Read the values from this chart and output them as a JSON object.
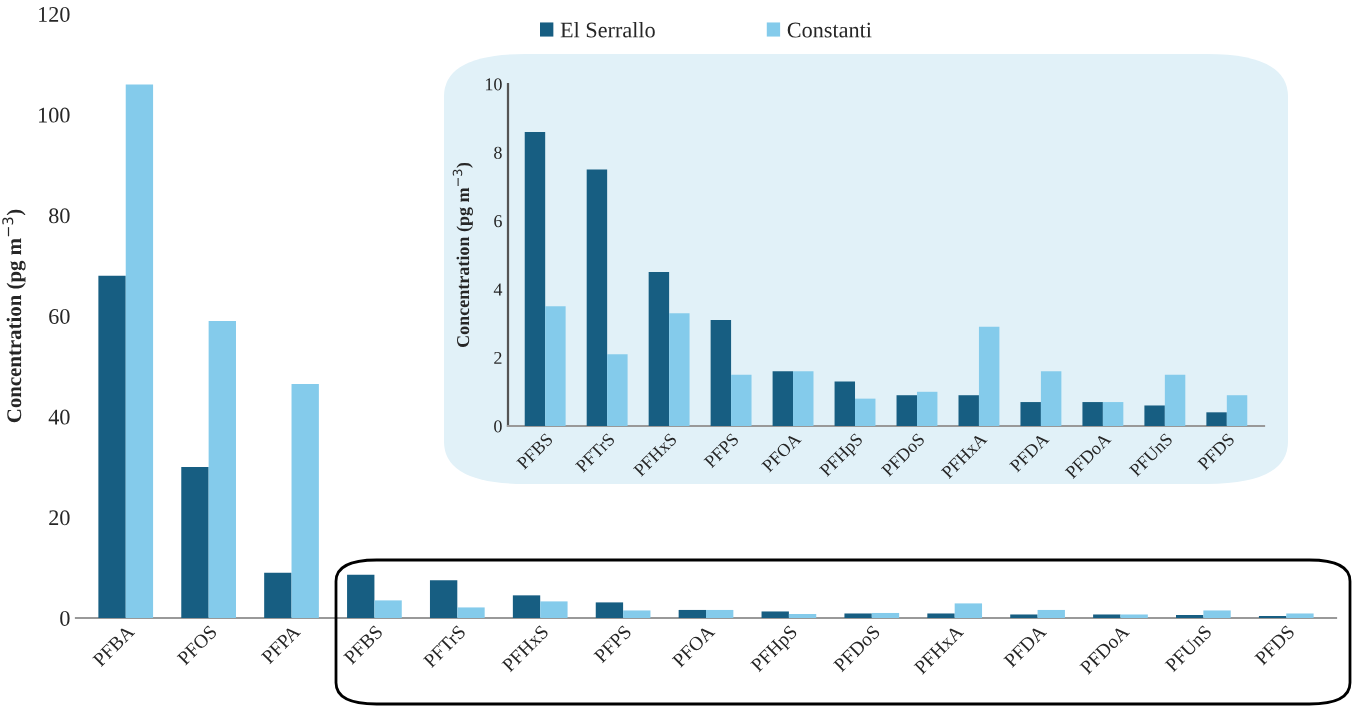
{
  "chart_data": [
    {
      "type": "bar",
      "ylabel": "Concentration (pg m$^{−3}$)",
      "categories": [
        "PFBA",
        "PFOS",
        "PFPA",
        "PFBS",
        "PFTrS",
        "PFHxS",
        "PFPS",
        "PFOA",
        "PFHpS",
        "PFDoS",
        "PFHxA",
        "PFDA",
        "PFDoA",
        "PFUnS",
        "PFDS"
      ],
      "series": [
        {
          "name": "El Serrallo",
          "color": "#175e82",
          "values": [
            68,
            30,
            9,
            8.6,
            7.5,
            4.5,
            3.1,
            1.6,
            1.3,
            0.9,
            0.9,
            0.7,
            0.7,
            0.6,
            0.4
          ]
        },
        {
          "name": "Constanti",
          "color": "#84cbeb",
          "values": [
            106,
            59,
            46.5,
            3.5,
            2.1,
            3.3,
            1.5,
            1.6,
            0.8,
            1.0,
            2.9,
            1.6,
            0.7,
            1.5,
            0.9
          ]
        }
      ],
      "ylim": [
        0,
        120
      ],
      "yticks": [
        0,
        20,
        40,
        60,
        80,
        100,
        120
      ],
      "legend": "top",
      "grid": false
    },
    {
      "type": "bar",
      "ylabel": "Concentration (pg m$^{−3}$)",
      "categories": [
        "PFBS",
        "PFTrS",
        "PFHxS",
        "PFPS",
        "PFOA",
        "PFHpS",
        "PFDoS",
        "PFHxA",
        "PFDA",
        "PFDoA",
        "PFUnS",
        "PFDS"
      ],
      "series": [
        {
          "color": "#175e82",
          "values": [
            8.6,
            7.5,
            4.5,
            3.1,
            1.6,
            1.3,
            0.9,
            0.9,
            0.7,
            0.7,
            0.6,
            0.4
          ]
        },
        {
          "color": "#84cbeb",
          "values": [
            3.5,
            2.1,
            3.3,
            1.5,
            1.6,
            0.8,
            1.0,
            2.9,
            1.6,
            0.7,
            1.5,
            0.9
          ]
        }
      ],
      "ylim": [
        0,
        10
      ],
      "yticks": [
        0,
        2,
        4,
        6,
        8,
        10
      ],
      "grid": false
    }
  ]
}
